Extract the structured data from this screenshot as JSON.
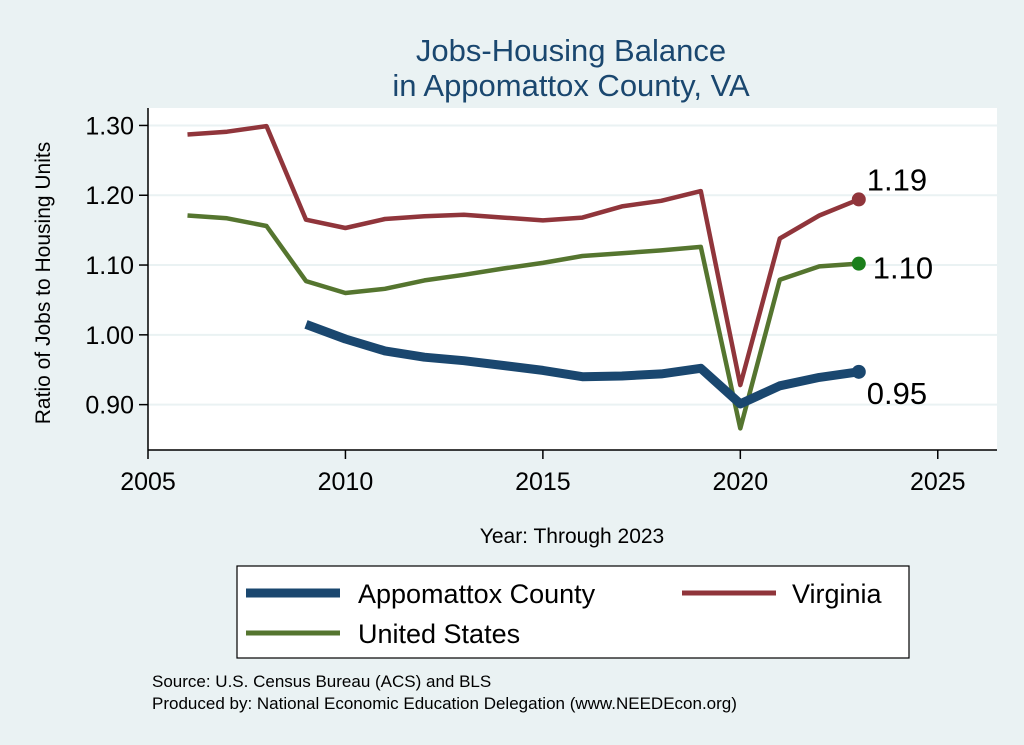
{
  "chart_data": {
    "type": "line",
    "title": [
      "Jobs-Housing Balance",
      "in Appomattox County, VA"
    ],
    "xlabel": "Year: Through 2023",
    "ylabel": "Ratio of Jobs to Housing Units",
    "xlim": [
      2005,
      2026.5
    ],
    "ylim": [
      0.835,
      1.325
    ],
    "xticks": [
      2005,
      2010,
      2015,
      2020,
      2025
    ],
    "yticks": [
      0.9,
      1.0,
      1.1,
      1.2,
      1.3
    ],
    "ytick_labels": [
      "0.90",
      "1.00",
      "1.10",
      "1.20",
      "1.30"
    ],
    "grid": true,
    "legend_position": "bottom",
    "series": [
      {
        "name": "Appomattox County",
        "color": "#1A476F",
        "x": [
          2009,
          2010,
          2011,
          2012,
          2013,
          2014,
          2015,
          2016,
          2017,
          2018,
          2019,
          2020,
          2021,
          2022,
          2023
        ],
        "y": [
          1.015,
          0.994,
          0.977,
          0.968,
          0.963,
          0.956,
          0.949,
          0.94,
          0.941,
          0.944,
          0.952,
          0.901,
          0.927,
          0.939,
          0.947
        ],
        "end_label": "0.95"
      },
      {
        "name": "Virginia",
        "color": "#90353B",
        "x": [
          2006,
          2007,
          2008,
          2009,
          2010,
          2011,
          2012,
          2013,
          2014,
          2015,
          2016,
          2017,
          2018,
          2019,
          2020,
          2021,
          2022,
          2023
        ],
        "y": [
          1.287,
          1.291,
          1.299,
          1.165,
          1.153,
          1.166,
          1.17,
          1.172,
          1.168,
          1.164,
          1.168,
          1.184,
          1.192,
          1.206,
          0.928,
          1.138,
          1.171,
          1.194
        ],
        "end_label": "1.19"
      },
      {
        "name": "United States",
        "color": "#55752F",
        "x": [
          2006,
          2007,
          2008,
          2009,
          2010,
          2011,
          2012,
          2013,
          2014,
          2015,
          2016,
          2017,
          2018,
          2019,
          2020,
          2021,
          2022,
          2023
        ],
        "y": [
          1.171,
          1.167,
          1.156,
          1.077,
          1.06,
          1.066,
          1.078,
          1.086,
          1.095,
          1.103,
          1.113,
          1.117,
          1.121,
          1.126,
          0.866,
          1.079,
          1.098,
          1.102
        ],
        "end_label": "1.10",
        "end_marker_color": "#1B7F1B"
      }
    ],
    "notes": [
      "Source: U.S. Census Bureau (ACS) and BLS",
      "Produced by: National Economic Education Delegation (www.NEEDEcon.org)"
    ]
  }
}
